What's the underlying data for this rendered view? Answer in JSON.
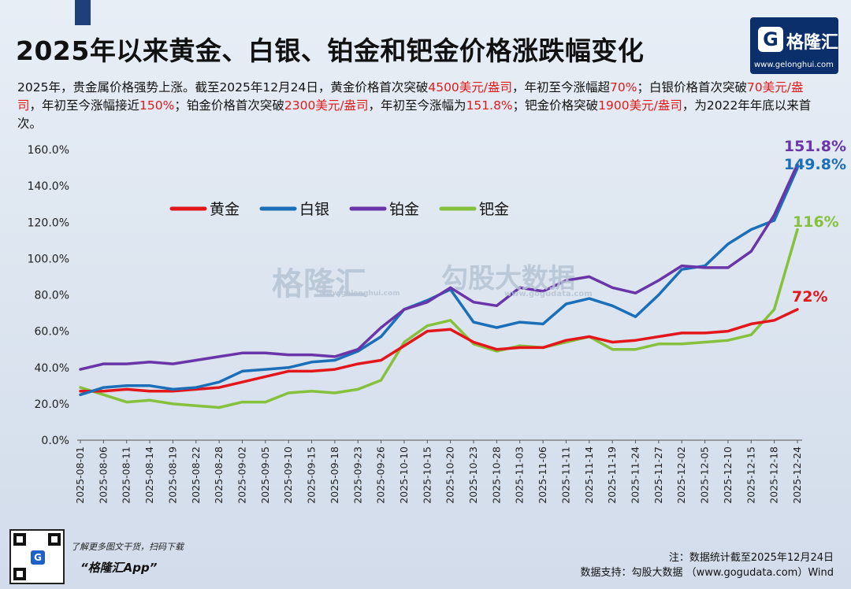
{
  "header": {
    "title": "2025年以来黄金、白银、铂金和钯金价格涨跌幅变化",
    "logo_letter": "G",
    "logo_name": "格隆汇",
    "logo_url": "www.gelonghui.com"
  },
  "description": {
    "p1": "2025年，贵金属价格强势上涨。截至2025年12月24日，黄金价格首次突破",
    "p2": "4500美元/盎司",
    "p3": "，年初至今涨幅超",
    "p4": "70%",
    "p5": "；白银价格首次突破",
    "p6": "70美元/盎司",
    "p7": "，年初至今涨幅接近",
    "p8": "150%",
    "p9": "；铂金价格首次突破",
    "p10": "2300美元/盎司",
    "p11": "，年初至今涨幅为",
    "p12": "151.8%",
    "p13": "；钯金价格突破",
    "p14": "1900美元/盎司",
    "p15": "，为2022年年底以来首次。"
  },
  "watermarks": {
    "brand": "格隆汇",
    "brand_url": "www.gelonghui.com",
    "data_brand": "勾股大数据",
    "data_url": "www.gogudata.com"
  },
  "chart_data": {
    "type": "line",
    "title": "2025年以来黄金、白银、铂金和钯金价格涨跌幅变化",
    "xlabel": "",
    "ylabel": "",
    "ylim": [
      0,
      160
    ],
    "yticks": [
      "0.0%",
      "20.0%",
      "40.0%",
      "60.0%",
      "80.0%",
      "100.0%",
      "120.0%",
      "140.0%",
      "160.0%"
    ],
    "x": [
      "2025-08-01",
      "2025-08-06",
      "2025-08-11",
      "2025-08-14",
      "2025-08-19",
      "2025-08-22",
      "2025-08-28",
      "2025-09-02",
      "2025-09-05",
      "2025-09-10",
      "2025-09-15",
      "2025-09-18",
      "2025-09-23",
      "2025-09-26",
      "2025-10-10",
      "2025-10-15",
      "2025-10-20",
      "2025-10-23",
      "2025-10-28",
      "2025-11-03",
      "2025-11-06",
      "2025-11-11",
      "2025-11-14",
      "2025-11-19",
      "2025-11-24",
      "2025-11-27",
      "2025-12-02",
      "2025-12-05",
      "2025-12-10",
      "2025-12-15",
      "2025-12-18",
      "2025-12-24"
    ],
    "legend": "top-left",
    "grid": false,
    "series": [
      {
        "name": "黄金",
        "color": "#e3161b",
        "end_label": "72%",
        "values": [
          27,
          27,
          28,
          27,
          27,
          28,
          29,
          32,
          35,
          38,
          38,
          39,
          42,
          44,
          52,
          60,
          61,
          54,
          50,
          51,
          51,
          55,
          57,
          54,
          55,
          57,
          59,
          59,
          60,
          64,
          66,
          72
        ]
      },
      {
        "name": "白银",
        "color": "#1a6fb8",
        "end_label": "149.8%",
        "values": [
          25,
          29,
          30,
          30,
          28,
          29,
          32,
          38,
          39,
          40,
          43,
          44,
          49,
          57,
          72,
          77,
          83,
          65,
          62,
          65,
          64,
          75,
          78,
          74,
          68,
          80,
          94,
          96,
          108,
          116,
          121,
          149.8
        ]
      },
      {
        "name": "铂金",
        "color": "#6a35a8",
        "end_label": "151.8%",
        "values": [
          39,
          42,
          42,
          43,
          42,
          44,
          46,
          48,
          48,
          47,
          47,
          46,
          50,
          62,
          72,
          76,
          84,
          76,
          74,
          84,
          82,
          88,
          90,
          84,
          81,
          88,
          96,
          95,
          95,
          104,
          124,
          151.8
        ]
      },
      {
        "name": "钯金",
        "color": "#86c13d",
        "end_label": "116%",
        "values": [
          29,
          25,
          21,
          22,
          20,
          19,
          18,
          21,
          21,
          26,
          27,
          26,
          28,
          33,
          54,
          63,
          66,
          53,
          49,
          52,
          51,
          54,
          57,
          50,
          50,
          53,
          53,
          54,
          55,
          58,
          72,
          116
        ]
      }
    ]
  },
  "footer": {
    "qr_badge": "G",
    "promo_line": "了解更多图文干货，扫码下载",
    "app_name": "“格隆汇App”",
    "note": "注：数据统计截至2025年12月24日",
    "source": "数据支持：勾股大数据 （www.gogudata.com）Wind"
  }
}
